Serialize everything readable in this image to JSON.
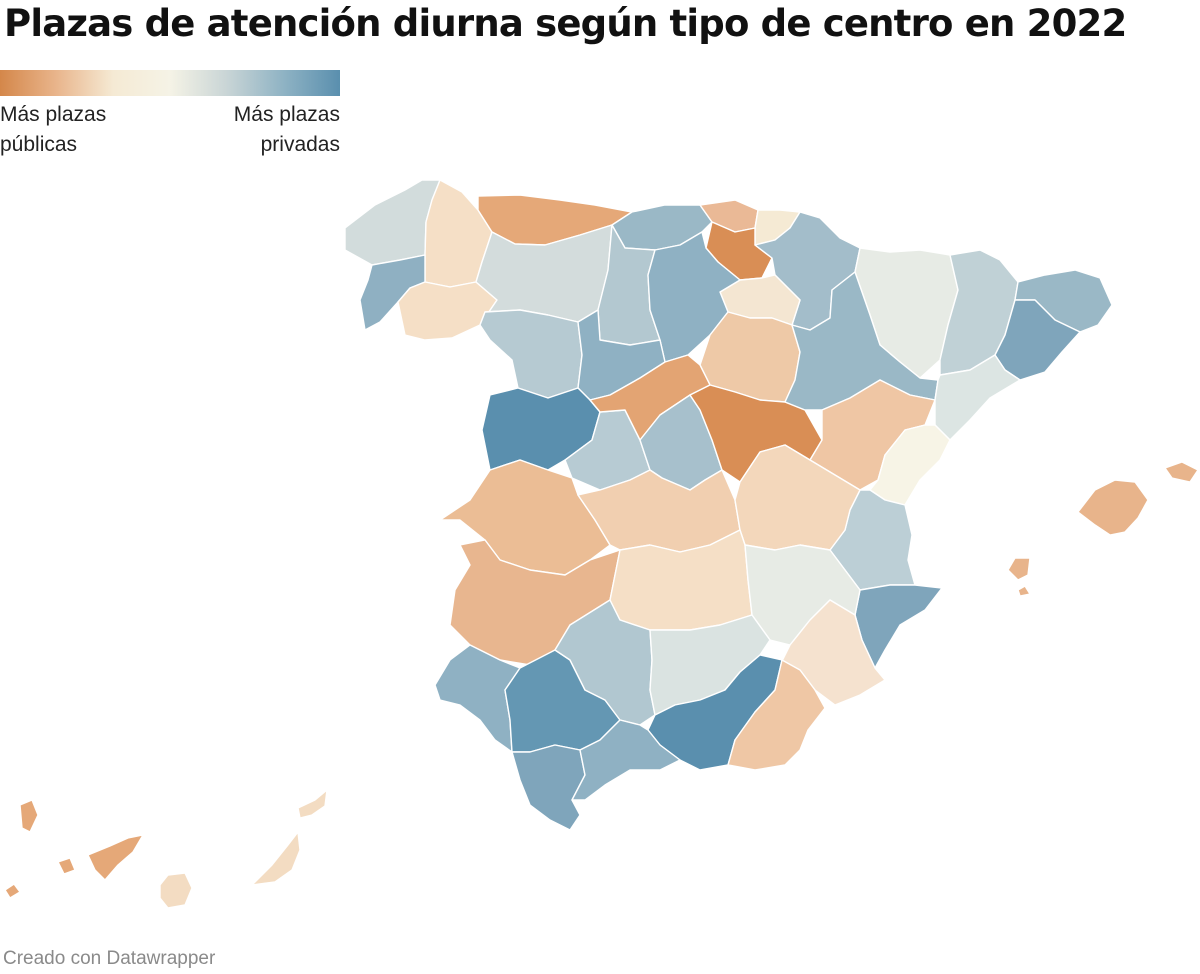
{
  "title": "Plazas de atención diurna según tipo de centro en 2022",
  "legend": {
    "low_label": "Más plazas\npúblicas",
    "high_label": "Más plazas\nprivadas",
    "colors": [
      "#d4874a",
      "#e9b58c",
      "#f5ead4",
      "#f5f3e6",
      "#c9d5d6",
      "#8fb3c4",
      "#5a8fae"
    ]
  },
  "regions": [
    {
      "name": "A Coruña",
      "color": "#d2dcdc"
    },
    {
      "name": "Lugo",
      "color": "#f5dfc6"
    },
    {
      "name": "Pontevedra",
      "color": "#8fb0c2"
    },
    {
      "name": "Ourense",
      "color": "#f5dfc6"
    },
    {
      "name": "Asturias",
      "color": "#e5a878"
    },
    {
      "name": "Cantabria",
      "color": "#9ab8c6"
    },
    {
      "name": "Bizkaia",
      "color": "#eab996"
    },
    {
      "name": "Gipuzkoa",
      "color": "#f5ead4"
    },
    {
      "name": "Álava",
      "color": "#d98e55"
    },
    {
      "name": "Navarra",
      "color": "#a3bdca"
    },
    {
      "name": "La Rioja",
      "color": "#f4e6d2"
    },
    {
      "name": "León",
      "color": "#d3dcdc"
    },
    {
      "name": "Palencia",
      "color": "#b3c8d0"
    },
    {
      "name": "Burgos",
      "color": "#8fb1c3"
    },
    {
      "name": "Zamora",
      "color": "#b6cad2"
    },
    {
      "name": "Valladolid",
      "color": "#8fb1c3"
    },
    {
      "name": "Soria",
      "color": "#eec9a7"
    },
    {
      "name": "Salamanca",
      "color": "#5a8fae"
    },
    {
      "name": "Ávila",
      "color": "#b7cbd3"
    },
    {
      "name": "Segovia",
      "color": "#e3a473"
    },
    {
      "name": "Madrid",
      "color": "#a7c0cc"
    },
    {
      "name": "Guadalajara",
      "color": "#d98e55"
    },
    {
      "name": "Huesca",
      "color": "#e7ebe5"
    },
    {
      "name": "Zaragoza",
      "color": "#9ab8c6"
    },
    {
      "name": "Teruel",
      "color": "#efc6a4"
    },
    {
      "name": "Lleida",
      "color": "#c0d1d6"
    },
    {
      "name": "Girona",
      "color": "#9ab8c6"
    },
    {
      "name": "Barcelona",
      "color": "#7fa5bb"
    },
    {
      "name": "Tarragona",
      "color": "#dce5e3"
    },
    {
      "name": "Castellón",
      "color": "#f7f4e6"
    },
    {
      "name": "Valencia",
      "color": "#bccfd6"
    },
    {
      "name": "Alicante",
      "color": "#7fa5bb"
    },
    {
      "name": "Cáceres",
      "color": "#ebbd95"
    },
    {
      "name": "Badajoz",
      "color": "#e8b68f"
    },
    {
      "name": "Toledo",
      "color": "#f1cfb0"
    },
    {
      "name": "Cuenca",
      "color": "#f3d7bb"
    },
    {
      "name": "Ciudad Real",
      "color": "#f5dfc6"
    },
    {
      "name": "Albacete",
      "color": "#e7ebe5"
    },
    {
      "name": "Murcia",
      "color": "#f5e2cf"
    },
    {
      "name": "Huelva",
      "color": "#8fb1c3"
    },
    {
      "name": "Sevilla",
      "color": "#6497b3"
    },
    {
      "name": "Córdoba",
      "color": "#b1c7d0"
    },
    {
      "name": "Jaén",
      "color": "#dae3e1"
    },
    {
      "name": "Granada",
      "color": "#5a8fae"
    },
    {
      "name": "Almería",
      "color": "#efc7a5"
    },
    {
      "name": "Cádiz",
      "color": "#7fa5bb"
    },
    {
      "name": "Málaga",
      "color": "#8fb1c3"
    },
    {
      "name": "Illes Balears",
      "color": "#e8b48b"
    },
    {
      "name": "Las Palmas",
      "color": "#f3dcc2"
    },
    {
      "name": "Santa Cruz de Tenerife",
      "color": "#e5a878"
    }
  ],
  "footer": "Creado con Datawrapper"
}
